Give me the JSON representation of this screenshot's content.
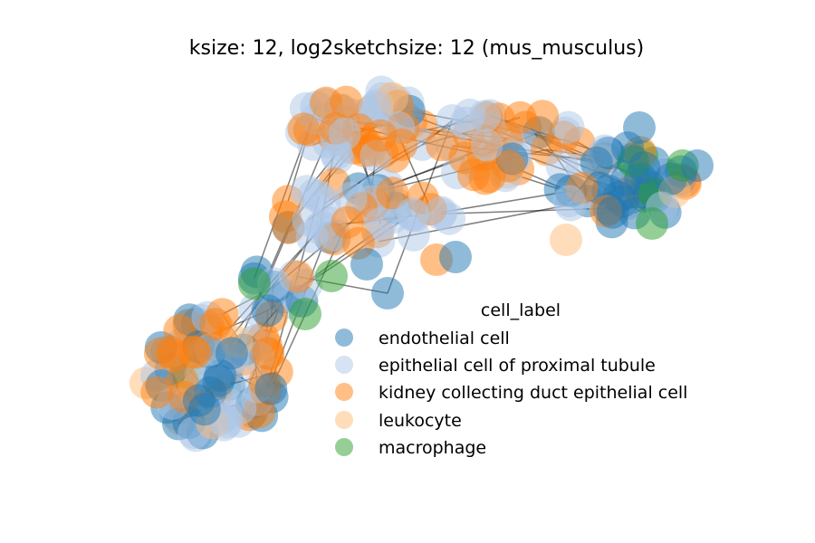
{
  "title": "ksize: 12, log2sketchsize: 12 (mus_musculus)",
  "legend": {
    "title": "cell_label",
    "items": [
      {
        "label": "endothelial cell",
        "color": "#1f77b4"
      },
      {
        "label": "epithelial cell of proximal tubule",
        "color": "#aec7e8"
      },
      {
        "label": "kidney collecting duct epithelial cell",
        "color": "#ff7f0e"
      },
      {
        "label": "leukocyte",
        "color": "#ffbb78"
      },
      {
        "label": "macrophage",
        "color": "#2ca02c"
      }
    ]
  },
  "colors": {
    "edge": "#000000",
    "node_alpha": 0.5
  }
}
